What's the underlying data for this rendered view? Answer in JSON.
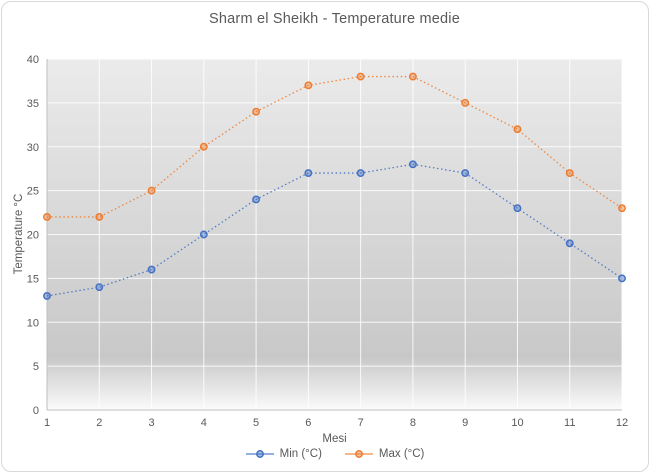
{
  "chart_data": {
    "type": "line",
    "title": "Sharm el Sheikh - Temperature medie",
    "xlabel": "Mesi",
    "ylabel": "Temperature °C",
    "x": [
      1,
      2,
      3,
      4,
      5,
      6,
      7,
      8,
      9,
      10,
      11,
      12
    ],
    "series": [
      {
        "name": "Min (°C)",
        "color": "#4472C4",
        "values": [
          13,
          14,
          16,
          20,
          24,
          27,
          27,
          28,
          27,
          23,
          19,
          15
        ]
      },
      {
        "name": "Max (°C)",
        "color": "#ED7D31",
        "values": [
          22,
          22,
          25,
          30,
          34,
          37,
          38,
          38,
          35,
          32,
          27,
          23
        ]
      }
    ],
    "ylim": [
      0,
      40
    ],
    "ytick_step": 5,
    "grid": true,
    "line_style": "dotted",
    "marker": "circle",
    "legend_position": "bottom"
  },
  "colors": {
    "text": "#595959",
    "axis_line": "#bfbfbf",
    "gridline": "#ffffff",
    "plot_bg_top": "#ebebeb",
    "plot_bg_mid": "#c8c8c8",
    "plot_bg_bottom": "#fbfbfb",
    "frame_border": "#d9d9d9"
  }
}
